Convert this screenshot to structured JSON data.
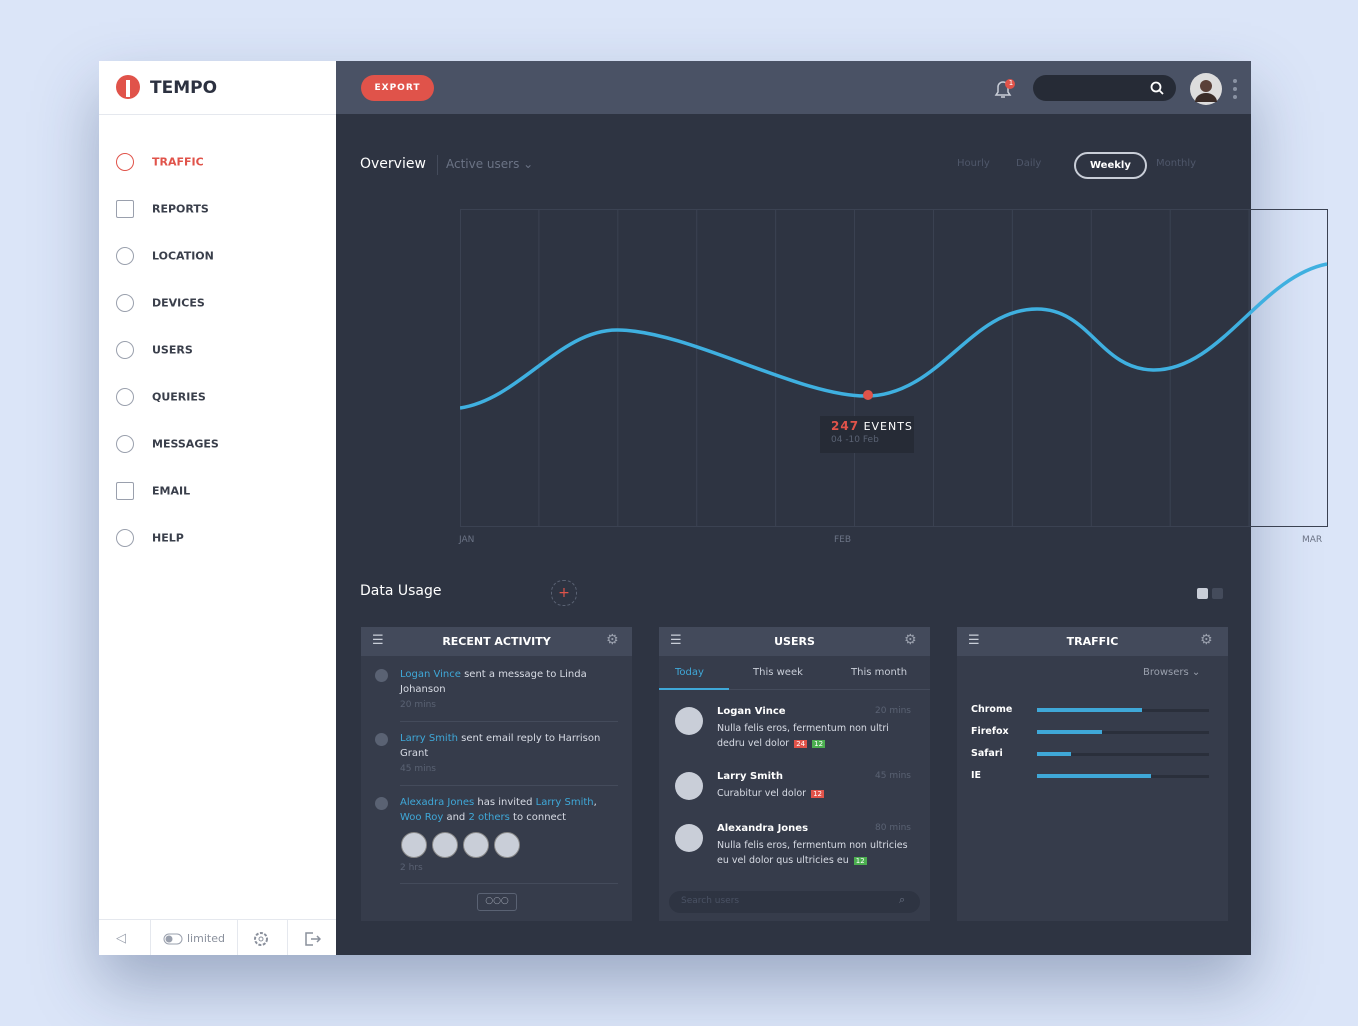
{
  "sidebar": {
    "brand": "TEMPO",
    "nav": [
      "TRAFFIC",
      "REPORTS",
      "LOCATION",
      "DEVICES",
      "USERS",
      "QUERIES",
      "MESSAGES",
      "EMAIL",
      "HELP"
    ],
    "footer_toggle": "limited"
  },
  "header": {
    "export": "EXPORT",
    "notifications": "1"
  },
  "overview": {
    "title": "Overview",
    "filter": "Active users",
    "ranges": [
      "Hourly",
      "Daily",
      "Weekly",
      "Monthly"
    ],
    "x_labels": [
      "JAN",
      "FEB",
      "MAR"
    ],
    "tooltip": {
      "value": 247,
      "unit": "EVENTS",
      "date": "04 -10 Feb"
    }
  },
  "data_usage": {
    "title": "Data Usage"
  },
  "recent_activity": {
    "title": "RECENT ACTIVITY",
    "items": [
      {
        "parts": [
          {
            "text": "Logan Vince",
            "link": true
          },
          {
            "text": " sent a message to Linda Johanson",
            "link": false
          }
        ],
        "time": "20 mins"
      },
      {
        "parts": [
          {
            "text": "Larry Smith",
            "link": true
          },
          {
            "text": " sent email reply to Harrison Grant",
            "link": false
          }
        ],
        "time": "45 mins"
      },
      {
        "parts": [
          {
            "text": "Alexadra Jones",
            "link": true
          },
          {
            "text": " has invited ",
            "link": false
          },
          {
            "text": "Larry Smith",
            "link": true
          },
          {
            "text": ", ",
            "link": false
          },
          {
            "text": "Woo Roy",
            "link": true
          },
          {
            "text": " and ",
            "link": false
          },
          {
            "text": "2 others",
            "link": true
          },
          {
            "text": " to connect",
            "link": false
          }
        ],
        "time": "2 hrs"
      }
    ]
  },
  "users": {
    "title": "USERS",
    "tabs": [
      "Today",
      "This week",
      "This month"
    ],
    "items": [
      {
        "name": "Logan Vince",
        "text": "Nulla felis eros, fermentum non ultri dedru vel dolor",
        "time": "20 mins",
        "badges": [
          "24",
          "12"
        ]
      },
      {
        "name": "Larry Smith",
        "text": "Curabitur vel dolor",
        "time": "45 mins",
        "badges": [
          "12"
        ]
      },
      {
        "name": "Alexandra Jones",
        "text": "Nulla felis eros, fermentum non ultricies eu vel dolor qus ultricies eu",
        "time": "80 mins",
        "badges": [
          "12"
        ]
      }
    ],
    "search": "Search users"
  },
  "traffic": {
    "title": "TRAFFIC",
    "filter": "Browsers",
    "browsers": [
      {
        "name": "Chrome",
        "value": 61
      },
      {
        "name": "Firefox",
        "value": 38
      },
      {
        "name": "Safari",
        "value": 20
      },
      {
        "name": "IE",
        "value": 66
      }
    ]
  }
}
